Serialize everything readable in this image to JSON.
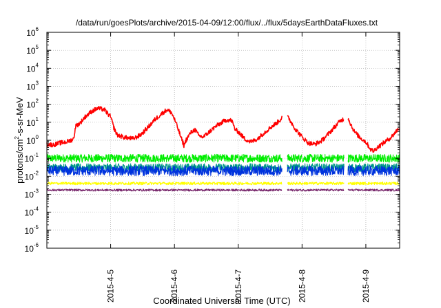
{
  "chart_data": {
    "type": "line",
    "title": "/data/run/goesPlots/archive/2015-04-09/12:00/flux/../flux/5daysEarthDataFluxes.txt",
    "xlabel": "Coordinated Universal Time (UTC)",
    "ylabel_parts": [
      "protons/cm",
      "2",
      "-s-sr-MeV"
    ],
    "y_scale": "log",
    "ylim": [
      1e-06,
      1000000.0
    ],
    "y_ticks": [
      {
        "base": "10",
        "exp": "-6",
        "value": 1e-06
      },
      {
        "base": "10",
        "exp": "-5",
        "value": 1e-05
      },
      {
        "base": "10",
        "exp": "-4",
        "value": 0.0001
      },
      {
        "base": "10",
        "exp": "-3",
        "value": 0.001
      },
      {
        "base": "10",
        "exp": "-2",
        "value": 0.01
      },
      {
        "base": "10",
        "exp": "-1",
        "value": 0.1
      },
      {
        "base": "10",
        "exp": "0",
        "value": 1
      },
      {
        "base": "10",
        "exp": "1",
        "value": 10
      },
      {
        "base": "10",
        "exp": "2",
        "value": 100
      },
      {
        "base": "10",
        "exp": "3",
        "value": 1000
      },
      {
        "base": "10",
        "exp": "4",
        "value": 10000
      },
      {
        "base": "10",
        "exp": "5",
        "value": 100000
      },
      {
        "base": "10",
        "exp": "6",
        "value": 1000000
      }
    ],
    "x_ticks": [
      {
        "label": "2015-4-5",
        "day": 1
      },
      {
        "label": "2015-4-6",
        "day": 2
      },
      {
        "label": "2015-4-7",
        "day": 3
      },
      {
        "label": "2015-4-8",
        "day": 4
      },
      {
        "label": "2015-4-9",
        "day": 5
      }
    ],
    "x_range_days": [
      0.0,
      5.53
    ],
    "grid": true,
    "legend": "none",
    "data_gaps_days": [
      [
        3.69,
        3.77
      ],
      [
        4.66,
        4.72
      ]
    ],
    "series": [
      {
        "color": "#ff0000",
        "base_noise": 0.25,
        "points": [
          [
            0.0,
            0.6
          ],
          [
            0.1,
            0.55
          ],
          [
            0.2,
            0.7
          ],
          [
            0.3,
            0.8
          ],
          [
            0.38,
            1.0
          ],
          [
            0.42,
            1.2
          ],
          [
            0.45,
            6
          ],
          [
            0.52,
            9
          ],
          [
            0.6,
            20
          ],
          [
            0.7,
            40
          ],
          [
            0.8,
            60
          ],
          [
            0.9,
            50
          ],
          [
            1.0,
            20
          ],
          [
            1.05,
            5
          ],
          [
            1.1,
            2
          ],
          [
            1.2,
            1.5
          ],
          [
            1.35,
            1.2
          ],
          [
            1.45,
            1.8
          ],
          [
            1.5,
            2.5
          ],
          [
            1.6,
            6
          ],
          [
            1.7,
            15
          ],
          [
            1.8,
            30
          ],
          [
            1.88,
            50
          ],
          [
            1.95,
            35
          ],
          [
            2.0,
            15
          ],
          [
            2.05,
            5
          ],
          [
            2.1,
            1.5
          ],
          [
            2.15,
            0.5
          ],
          [
            2.18,
            1.0
          ],
          [
            2.25,
            2.5
          ],
          [
            2.32,
            4
          ],
          [
            2.38,
            1.8
          ],
          [
            2.45,
            1.5
          ],
          [
            2.55,
            3
          ],
          [
            2.65,
            6
          ],
          [
            2.75,
            10
          ],
          [
            2.82,
            14
          ],
          [
            2.9,
            12
          ],
          [
            2.95,
            4
          ],
          [
            3.0,
            3
          ],
          [
            3.1,
            1.2
          ],
          [
            3.2,
            0.8
          ],
          [
            3.3,
            1.2
          ],
          [
            3.4,
            2.5
          ],
          [
            3.5,
            5
          ],
          [
            3.6,
            9
          ],
          [
            3.66,
            14
          ],
          [
            3.69,
            20
          ],
          [
            3.77,
            20
          ],
          [
            3.8,
            15
          ],
          [
            3.9,
            4
          ],
          [
            4.0,
            1.5
          ],
          [
            4.1,
            0.7
          ],
          [
            4.2,
            0.6
          ],
          [
            4.3,
            0.9
          ],
          [
            4.4,
            2
          ],
          [
            4.5,
            5
          ],
          [
            4.6,
            12
          ],
          [
            4.66,
            16
          ],
          [
            4.72,
            18
          ],
          [
            4.77,
            7
          ],
          [
            4.82,
            3
          ],
          [
            4.9,
            1.5
          ],
          [
            5.0,
            0.8
          ],
          [
            5.08,
            0.3
          ],
          [
            5.12,
            0.25
          ],
          [
            5.18,
            0.4
          ],
          [
            5.3,
            0.8
          ],
          [
            5.4,
            1.5
          ],
          [
            5.5,
            4
          ],
          [
            5.53,
            5
          ]
        ]
      },
      {
        "color": "#00ee00",
        "level": 0.1,
        "noise": 0.45
      },
      {
        "color": "#009988",
        "level": 0.03,
        "noise": 0.45
      },
      {
        "color": "#0033dd",
        "level": 0.02,
        "noise": 0.55
      },
      {
        "color": "#ffff00",
        "level": 0.004,
        "noise": 0.15
      },
      {
        "color": "#7a2a6e",
        "level": 0.0017,
        "noise": 0.12
      }
    ]
  }
}
